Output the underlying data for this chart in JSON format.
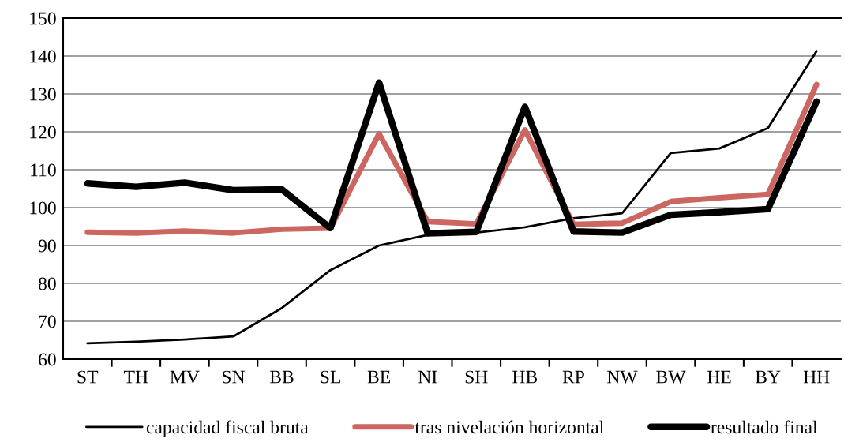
{
  "chart_data": {
    "type": "line",
    "categories": [
      "ST",
      "TH",
      "MV",
      "SN",
      "BB",
      "SL",
      "BE",
      "NI",
      "SH",
      "HB",
      "RP",
      "NW",
      "BW",
      "HE",
      "BY",
      "HH"
    ],
    "series": [
      {
        "name": "capacidad fiscal bruta",
        "color": "#000000",
        "values": [
          64.2,
          64.6,
          65.2,
          66.0,
          73.5,
          83.5,
          90.0,
          92.8,
          93.4,
          94.8,
          97.2,
          98.5,
          114.4,
          115.6,
          121.0,
          141.3
        ]
      },
      {
        "name": "tras nivelación horizontal",
        "color": "#cc6660",
        "values": [
          93.5,
          93.3,
          93.8,
          93.3,
          94.3,
          94.6,
          119.5,
          96.3,
          95.7,
          120.5,
          95.6,
          95.9,
          101.6,
          102.6,
          103.5,
          132.5
        ]
      },
      {
        "name": "resultado final",
        "color": "#000000",
        "values": [
          106.4,
          105.5,
          106.6,
          104.6,
          104.8,
          94.6,
          133.0,
          93.2,
          93.6,
          126.6,
          93.7,
          93.4,
          98.1,
          98.8,
          99.6,
          128.0
        ]
      }
    ],
    "ylim": [
      60,
      150
    ],
    "yticks": [
      60,
      70,
      80,
      90,
      100,
      110,
      120,
      130,
      140,
      150
    ],
    "grid": "y",
    "legend": "bottom",
    "marker": "none",
    "line_style": "solid"
  }
}
